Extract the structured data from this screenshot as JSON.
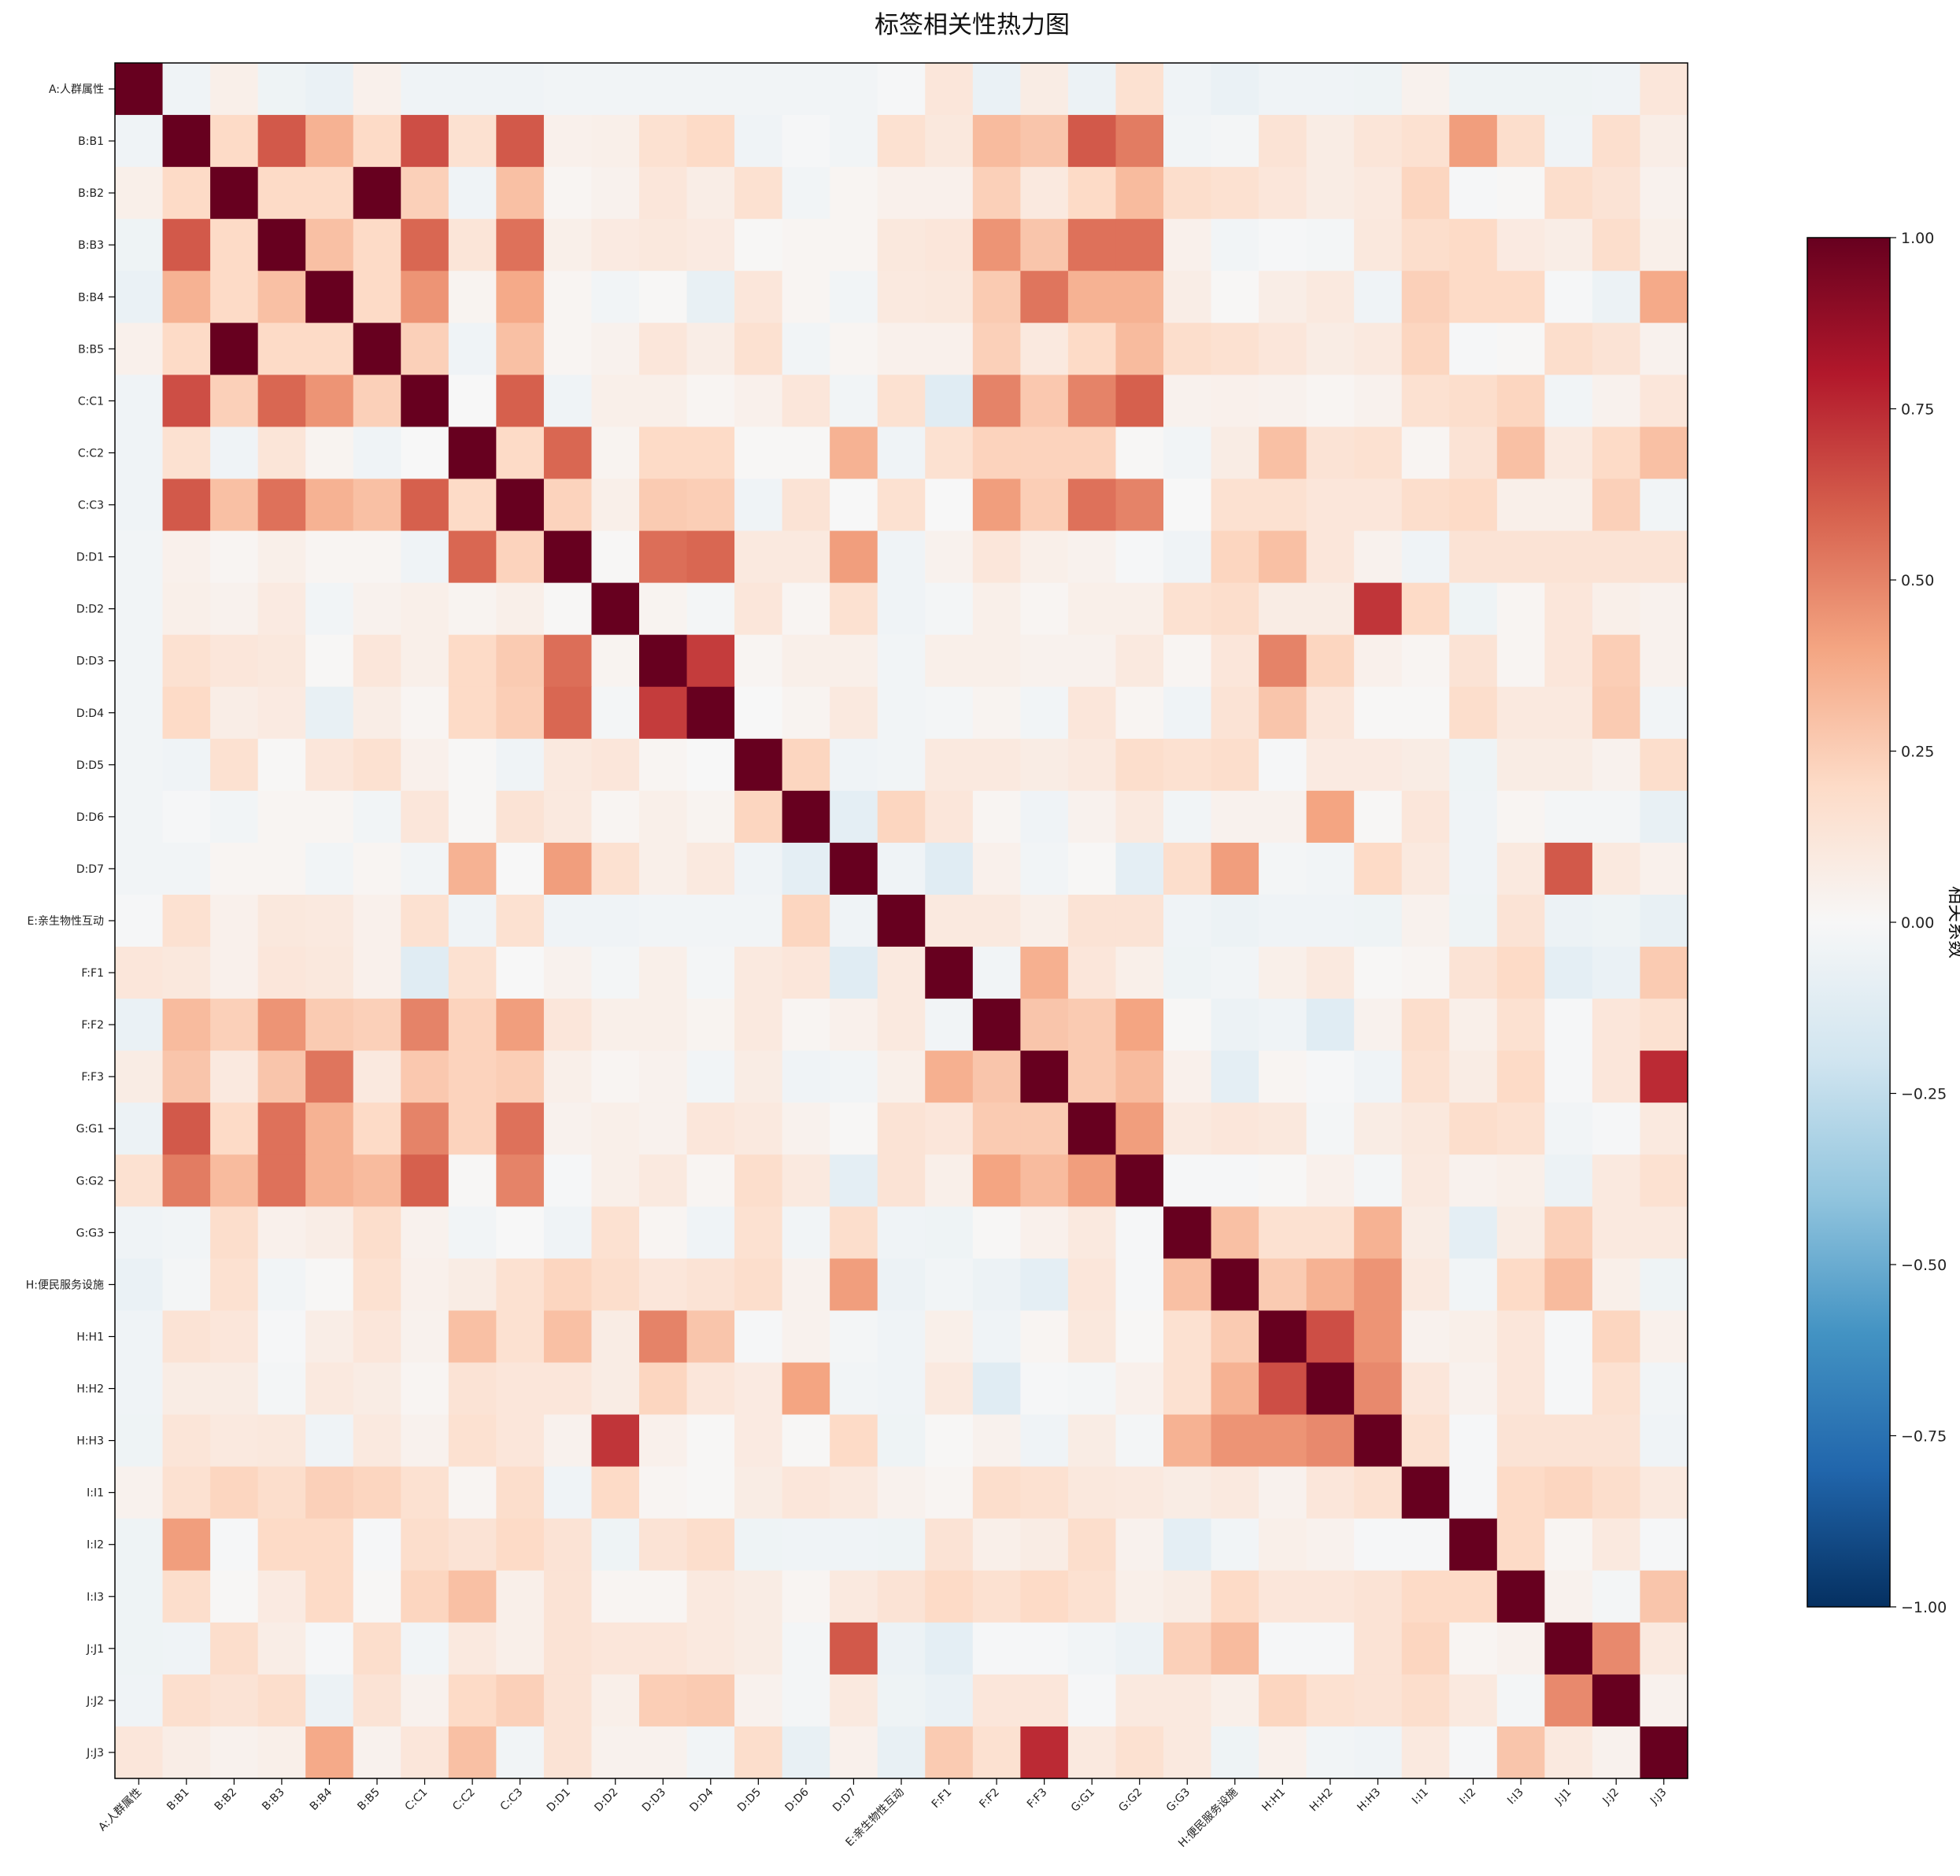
{
  "chart_data": {
    "type": "heatmap",
    "title": "标签相关性热力图",
    "labels": [
      "A:人群属性",
      "B:B1",
      "B:B2",
      "B:B3",
      "B:B4",
      "B:B5",
      "C:C1",
      "C:C2",
      "C:C3",
      "D:D1",
      "D:D2",
      "D:D3",
      "D:D4",
      "D:D5",
      "D:D6",
      "D:D7",
      "E:亲生物性互动",
      "F:F1",
      "F:F2",
      "F:F3",
      "G:G1",
      "G:G2",
      "G:G3",
      "H:便民服务设施",
      "H:H1",
      "H:H2",
      "H:H3",
      "I:I1",
      "I:I2",
      "I:I3",
      "J:J1",
      "J:J2",
      "J:J3"
    ],
    "matrix": [
      [
        1.0,
        -0.04,
        0.06,
        -0.05,
        -0.07,
        0.05,
        -0.04,
        -0.04,
        -0.04,
        -0.03,
        -0.03,
        -0.03,
        -0.03,
        -0.03,
        -0.03,
        -0.03,
        -0.01,
        0.12,
        -0.07,
        0.08,
        -0.06,
        0.16,
        -0.04,
        -0.07,
        -0.04,
        -0.04,
        -0.05,
        0.04,
        -0.05,
        -0.05,
        -0.05,
        -0.04,
        0.12
      ],
      [
        -0.04,
        1.0,
        0.2,
        0.62,
        0.35,
        0.2,
        0.65,
        0.16,
        0.62,
        0.05,
        0.06,
        0.16,
        0.2,
        -0.04,
        -0.01,
        -0.03,
        0.16,
        0.11,
        0.32,
        0.28,
        0.62,
        0.52,
        -0.03,
        -0.02,
        0.14,
        0.08,
        0.13,
        0.16,
        0.42,
        0.18,
        -0.04,
        0.17,
        0.07
      ],
      [
        0.06,
        0.2,
        1.0,
        0.2,
        0.2,
        1.0,
        0.24,
        -0.04,
        0.3,
        0.02,
        0.04,
        0.12,
        0.07,
        0.16,
        -0.03,
        0.02,
        0.05,
        0.05,
        0.24,
        0.1,
        0.2,
        0.32,
        0.18,
        0.16,
        0.12,
        0.08,
        0.1,
        0.22,
        -0.01,
        0.01,
        0.18,
        0.14,
        0.04
      ],
      [
        -0.05,
        0.62,
        0.2,
        1.0,
        0.3,
        0.2,
        0.58,
        0.13,
        0.55,
        0.06,
        0.09,
        0.11,
        0.09,
        0.01,
        0.02,
        0.02,
        0.11,
        0.12,
        0.45,
        0.28,
        0.55,
        0.55,
        0.05,
        -0.03,
        -0.01,
        -0.02,
        0.11,
        0.18,
        0.2,
        0.09,
        0.07,
        0.18,
        0.06
      ],
      [
        -0.07,
        0.35,
        0.2,
        0.3,
        1.0,
        0.2,
        0.45,
        0.03,
        0.38,
        0.02,
        -0.03,
        0.01,
        -0.08,
        0.12,
        0.02,
        -0.03,
        0.1,
        0.11,
        0.26,
        0.54,
        0.35,
        0.35,
        0.07,
        0.01,
        0.07,
        0.1,
        -0.04,
        0.24,
        0.2,
        0.2,
        -0.01,
        -0.06,
        0.38
      ],
      [
        0.05,
        0.2,
        1.0,
        0.2,
        0.2,
        1.0,
        0.24,
        -0.04,
        0.3,
        0.02,
        0.04,
        0.12,
        0.07,
        0.16,
        -0.03,
        0.02,
        0.05,
        0.05,
        0.24,
        0.1,
        0.2,
        0.32,
        0.18,
        0.16,
        0.12,
        0.08,
        0.1,
        0.22,
        -0.01,
        0.01,
        0.18,
        0.14,
        0.04
      ],
      [
        -0.04,
        0.65,
        0.24,
        0.58,
        0.45,
        0.24,
        1.0,
        0.0,
        0.6,
        -0.04,
        0.06,
        0.06,
        0.02,
        0.05,
        0.12,
        -0.03,
        0.16,
        -0.12,
        0.5,
        0.27,
        0.5,
        0.6,
        0.04,
        0.05,
        0.04,
        0.02,
        0.04,
        0.16,
        0.18,
        0.22,
        -0.03,
        0.04,
        0.12
      ],
      [
        -0.04,
        0.16,
        -0.04,
        0.13,
        0.03,
        -0.04,
        0.0,
        1.0,
        0.2,
        0.58,
        0.03,
        0.2,
        0.2,
        0.01,
        0.01,
        0.35,
        -0.04,
        0.16,
        0.23,
        0.23,
        0.23,
        0.01,
        -0.03,
        0.08,
        0.3,
        0.14,
        0.16,
        0.02,
        0.14,
        0.3,
        0.1,
        0.2,
        0.3
      ],
      [
        -0.04,
        0.62,
        0.3,
        0.55,
        0.35,
        0.3,
        0.6,
        0.2,
        1.0,
        0.23,
        0.06,
        0.26,
        0.25,
        -0.04,
        0.14,
        0.0,
        0.16,
        0.0,
        0.42,
        0.25,
        0.55,
        0.5,
        0.0,
        0.16,
        0.16,
        0.12,
        0.12,
        0.18,
        0.2,
        0.06,
        0.06,
        0.24,
        -0.03
      ],
      [
        -0.03,
        0.05,
        0.02,
        0.06,
        0.02,
        0.02,
        -0.04,
        0.58,
        0.23,
        1.0,
        0.01,
        0.56,
        0.58,
        0.1,
        0.1,
        0.42,
        -0.04,
        0.04,
        0.12,
        0.06,
        0.04,
        -0.01,
        -0.04,
        0.22,
        0.3,
        0.12,
        0.04,
        -0.04,
        0.14,
        0.14,
        0.14,
        0.14,
        0.14
      ],
      [
        -0.03,
        0.06,
        0.04,
        0.09,
        -0.03,
        0.04,
        0.06,
        0.03,
        0.06,
        0.01,
        1.0,
        0.03,
        -0.02,
        0.12,
        0.02,
        0.16,
        -0.04,
        -0.02,
        0.06,
        0.02,
        0.06,
        0.06,
        0.16,
        0.18,
        0.08,
        0.08,
        0.72,
        0.2,
        -0.05,
        0.02,
        0.12,
        0.06,
        0.04
      ],
      [
        -0.03,
        0.16,
        0.12,
        0.11,
        0.01,
        0.12,
        0.06,
        0.2,
        0.26,
        0.56,
        0.03,
        1.0,
        0.7,
        0.02,
        0.06,
        0.06,
        -0.03,
        0.06,
        0.06,
        0.04,
        0.04,
        0.1,
        0.02,
        0.12,
        0.5,
        0.22,
        0.05,
        0.02,
        0.14,
        0.02,
        0.12,
        0.25,
        0.04
      ],
      [
        -0.03,
        0.2,
        0.07,
        0.09,
        -0.08,
        0.07,
        0.02,
        0.2,
        0.25,
        0.58,
        -0.02,
        0.7,
        1.0,
        0.0,
        0.03,
        0.1,
        -0.03,
        -0.02,
        0.03,
        -0.03,
        0.12,
        0.02,
        -0.04,
        0.14,
        0.28,
        0.12,
        0.01,
        0.01,
        0.18,
        0.1,
        0.1,
        0.26,
        -0.03
      ],
      [
        -0.03,
        -0.04,
        0.16,
        0.01,
        0.12,
        0.16,
        0.05,
        0.01,
        -0.04,
        0.1,
        0.12,
        0.02,
        0.0,
        1.0,
        0.22,
        -0.04,
        -0.03,
        0.1,
        0.1,
        0.08,
        0.1,
        0.18,
        0.16,
        0.18,
        -0.01,
        0.09,
        0.09,
        0.08,
        -0.05,
        0.08,
        0.08,
        0.04,
        0.18
      ],
      [
        -0.03,
        -0.01,
        -0.03,
        0.02,
        0.02,
        -0.03,
        0.12,
        0.01,
        0.14,
        0.1,
        0.02,
        0.06,
        0.03,
        0.22,
        1.0,
        -0.1,
        0.22,
        0.12,
        0.02,
        -0.04,
        0.04,
        0.1,
        -0.03,
        0.04,
        0.04,
        0.4,
        0.01,
        0.12,
        -0.04,
        0.02,
        -0.02,
        -0.02,
        -0.08
      ],
      [
        -0.03,
        -0.03,
        0.02,
        0.02,
        -0.03,
        0.02,
        -0.03,
        0.35,
        0.0,
        0.42,
        0.16,
        0.06,
        0.1,
        -0.04,
        -0.1,
        1.0,
        -0.04,
        -0.12,
        0.05,
        -0.03,
        0.01,
        -0.1,
        0.18,
        0.42,
        -0.02,
        -0.03,
        0.2,
        0.1,
        -0.04,
        0.1,
        0.62,
        0.1,
        0.05
      ],
      [
        -0.01,
        0.16,
        0.05,
        0.11,
        0.1,
        0.05,
        0.16,
        -0.04,
        0.16,
        -0.04,
        -0.04,
        -0.03,
        -0.03,
        -0.03,
        0.22,
        -0.04,
        1.0,
        0.1,
        0.1,
        0.06,
        0.14,
        0.14,
        -0.04,
        -0.06,
        -0.04,
        -0.04,
        -0.05,
        0.04,
        -0.05,
        0.14,
        -0.06,
        -0.05,
        -0.08
      ],
      [
        0.12,
        0.11,
        0.05,
        0.12,
        0.11,
        0.05,
        -0.12,
        0.16,
        0.0,
        0.04,
        -0.02,
        0.06,
        -0.02,
        0.1,
        0.12,
        -0.12,
        0.1,
        1.0,
        -0.03,
        0.36,
        0.12,
        0.06,
        -0.05,
        -0.03,
        0.06,
        0.1,
        0.01,
        0.02,
        0.14,
        0.2,
        -0.1,
        -0.07,
        0.26
      ],
      [
        -0.07,
        0.32,
        0.24,
        0.45,
        0.26,
        0.24,
        0.5,
        0.23,
        0.42,
        0.12,
        0.06,
        0.06,
        0.03,
        0.1,
        0.02,
        0.05,
        0.1,
        -0.03,
        1.0,
        0.28,
        0.26,
        0.4,
        0.01,
        -0.06,
        -0.04,
        -0.12,
        0.04,
        0.18,
        0.06,
        0.16,
        -0.01,
        0.12,
        0.16
      ],
      [
        0.08,
        0.28,
        0.1,
        0.28,
        0.54,
        0.1,
        0.27,
        0.23,
        0.25,
        0.06,
        0.02,
        0.04,
        -0.03,
        0.08,
        -0.04,
        -0.03,
        0.06,
        0.36,
        0.28,
        1.0,
        0.26,
        0.32,
        0.05,
        -0.1,
        0.02,
        -0.01,
        -0.04,
        0.16,
        0.08,
        0.2,
        -0.01,
        0.12,
        0.75
      ],
      [
        -0.06,
        0.62,
        0.2,
        0.55,
        0.35,
        0.2,
        0.5,
        0.23,
        0.55,
        0.04,
        0.06,
        0.04,
        0.12,
        0.1,
        0.04,
        0.01,
        0.14,
        0.12,
        0.26,
        0.26,
        1.0,
        0.42,
        0.1,
        0.12,
        0.11,
        -0.02,
        0.08,
        0.11,
        0.18,
        0.16,
        -0.03,
        -0.01,
        0.1
      ],
      [
        0.16,
        0.52,
        0.32,
        0.55,
        0.35,
        0.32,
        0.6,
        0.01,
        0.5,
        -0.01,
        0.06,
        0.1,
        0.02,
        0.18,
        0.1,
        -0.1,
        0.14,
        0.06,
        0.4,
        0.32,
        0.42,
        1.0,
        -0.01,
        -0.01,
        0.01,
        0.05,
        -0.02,
        0.1,
        0.04,
        0.06,
        -0.06,
        0.1,
        0.16
      ],
      [
        -0.04,
        -0.03,
        0.18,
        0.05,
        0.07,
        0.18,
        0.04,
        -0.03,
        0.0,
        -0.04,
        0.16,
        0.02,
        -0.04,
        0.16,
        -0.03,
        0.18,
        -0.04,
        -0.05,
        0.01,
        0.05,
        0.1,
        -0.01,
        1.0,
        0.3,
        0.16,
        0.16,
        0.35,
        0.08,
        -0.1,
        0.08,
        0.24,
        0.1,
        0.1
      ],
      [
        -0.07,
        -0.02,
        0.16,
        -0.03,
        0.01,
        0.16,
        0.05,
        0.08,
        0.16,
        0.22,
        0.18,
        0.12,
        0.14,
        0.18,
        0.04,
        0.42,
        -0.06,
        -0.03,
        -0.06,
        -0.1,
        0.12,
        -0.01,
        0.3,
        1.0,
        0.26,
        0.35,
        0.45,
        0.1,
        -0.03,
        0.2,
        0.32,
        0.06,
        -0.05
      ],
      [
        -0.04,
        0.14,
        0.12,
        -0.01,
        0.07,
        0.12,
        0.04,
        0.3,
        0.16,
        0.3,
        0.08,
        0.5,
        0.28,
        -0.01,
        0.04,
        -0.02,
        -0.04,
        0.06,
        -0.04,
        0.02,
        0.11,
        0.01,
        0.16,
        0.26,
        1.0,
        0.65,
        0.45,
        0.04,
        0.06,
        0.12,
        -0.01,
        0.22,
        0.05
      ],
      [
        -0.04,
        0.08,
        0.08,
        -0.02,
        0.1,
        0.08,
        0.02,
        0.14,
        0.12,
        0.12,
        0.08,
        0.22,
        0.12,
        0.09,
        0.4,
        -0.03,
        -0.04,
        0.1,
        -0.12,
        -0.01,
        -0.02,
        0.05,
        0.16,
        0.35,
        0.65,
        1.0,
        0.48,
        0.12,
        0.04,
        0.12,
        -0.01,
        0.16,
        -0.03
      ],
      [
        -0.05,
        0.13,
        0.1,
        0.11,
        -0.04,
        0.1,
        0.04,
        0.16,
        0.12,
        0.04,
        0.72,
        0.05,
        0.01,
        0.09,
        0.01,
        0.2,
        -0.05,
        0.01,
        0.04,
        -0.04,
        0.08,
        -0.02,
        0.35,
        0.45,
        0.45,
        0.48,
        1.0,
        0.16,
        -0.01,
        0.14,
        0.14,
        0.14,
        -0.04
      ],
      [
        0.04,
        0.16,
        0.22,
        0.18,
        0.24,
        0.22,
        0.16,
        0.02,
        0.18,
        -0.04,
        0.2,
        0.02,
        0.01,
        0.08,
        0.12,
        0.1,
        0.04,
        0.02,
        0.18,
        0.16,
        0.11,
        0.1,
        0.08,
        0.1,
        0.04,
        0.12,
        0.16,
        1.0,
        -0.01,
        0.2,
        0.22,
        0.18,
        0.1
      ],
      [
        -0.05,
        0.42,
        -0.01,
        0.2,
        0.2,
        -0.01,
        0.18,
        0.14,
        0.2,
        0.14,
        -0.05,
        0.14,
        0.18,
        -0.05,
        -0.04,
        -0.04,
        -0.05,
        0.14,
        0.06,
        0.08,
        0.18,
        0.04,
        -0.1,
        -0.03,
        0.06,
        0.04,
        -0.01,
        -0.01,
        1.0,
        0.2,
        0.02,
        0.1,
        -0.01
      ],
      [
        -0.05,
        0.18,
        0.01,
        0.09,
        0.2,
        0.01,
        0.22,
        0.3,
        0.06,
        0.14,
        0.02,
        0.02,
        0.1,
        0.08,
        0.02,
        0.1,
        0.14,
        0.2,
        0.16,
        0.2,
        0.16,
        0.06,
        0.08,
        0.2,
        0.12,
        0.12,
        0.14,
        0.2,
        0.2,
        1.0,
        0.04,
        -0.02,
        0.28
      ],
      [
        -0.05,
        -0.04,
        0.18,
        0.07,
        -0.01,
        0.18,
        -0.03,
        0.1,
        0.06,
        0.14,
        0.12,
        0.12,
        0.1,
        0.08,
        -0.02,
        0.62,
        -0.06,
        -0.1,
        -0.01,
        -0.01,
        -0.03,
        -0.06,
        0.24,
        0.32,
        -0.01,
        -0.01,
        0.14,
        0.22,
        0.02,
        0.04,
        1.0,
        0.48,
        0.1
      ],
      [
        -0.04,
        0.17,
        0.14,
        0.18,
        -0.06,
        0.14,
        0.04,
        0.2,
        0.24,
        0.14,
        0.06,
        0.25,
        0.26,
        0.04,
        -0.02,
        0.1,
        -0.05,
        -0.07,
        0.12,
        0.12,
        -0.01,
        0.1,
        0.1,
        0.06,
        0.22,
        0.16,
        0.14,
        0.18,
        0.1,
        -0.02,
        0.48,
        1.0,
        0.04
      ],
      [
        0.12,
        0.07,
        0.04,
        0.06,
        0.38,
        0.04,
        0.12,
        0.3,
        -0.03,
        0.14,
        0.04,
        0.04,
        -0.03,
        0.18,
        -0.08,
        0.05,
        -0.08,
        0.26,
        0.16,
        0.75,
        0.1,
        0.16,
        0.1,
        -0.05,
        0.05,
        -0.03,
        -0.04,
        0.1,
        -0.01,
        0.28,
        0.1,
        0.04,
        1.0
      ]
    ],
    "vmin": -1.0,
    "vmax": 1.0,
    "colormap": "RdBu_r",
    "colorbar": {
      "label": "相关系数",
      "ticks": [
        "1.00",
        "0.75",
        "0.50",
        "0.25",
        "0.00",
        "−0.25",
        "−0.50",
        "−0.75",
        "−1.00"
      ],
      "tick_values": [
        1.0,
        0.75,
        0.5,
        0.25,
        0.0,
        -0.25,
        -0.5,
        -0.75,
        -1.0
      ]
    }
  }
}
